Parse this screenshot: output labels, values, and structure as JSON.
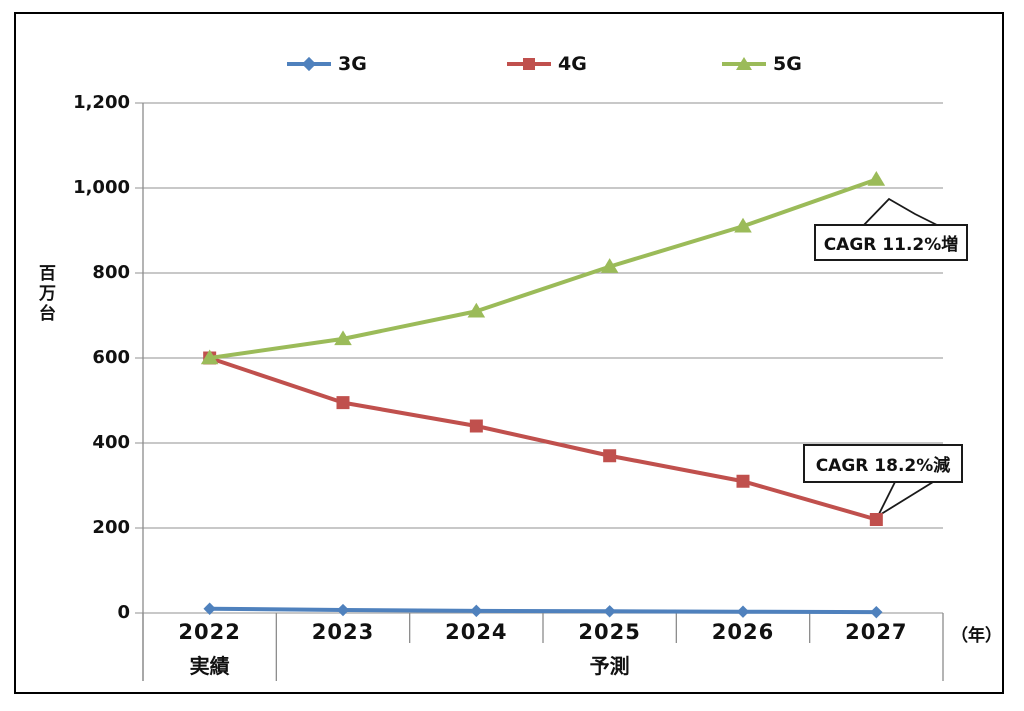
{
  "figure": {
    "unit_label": "百万台",
    "axis_unit_label": "（年）",
    "legend": [
      {
        "label": "3G",
        "color": "#4F81BD",
        "marker": "diamond"
      },
      {
        "label": "4G",
        "color": "#C0504D",
        "marker": "square"
      },
      {
        "label": "5G",
        "color": "#9BBB59",
        "marker": "triangle"
      }
    ]
  },
  "chart_data": {
    "type": "line",
    "categories": [
      "2022",
      "2023",
      "2024",
      "2025",
      "2026",
      "2027"
    ],
    "series": [
      {
        "name": "3G",
        "color": "#4F81BD",
        "marker": "diamond",
        "values": [
          10,
          7,
          5,
          4,
          3,
          2
        ]
      },
      {
        "name": "4G",
        "color": "#C0504D",
        "marker": "square",
        "values": [
          600,
          495,
          440,
          370,
          310,
          220
        ]
      },
      {
        "name": "5G",
        "color": "#9BBB59",
        "marker": "triangle",
        "values": [
          600,
          645,
          710,
          815,
          910,
          1020
        ]
      }
    ],
    "title": "",
    "xlabel": "（年）",
    "ylabel": "百万台",
    "ylim": [
      0,
      1200
    ],
    "ytick_step": 200,
    "yticks": [
      "0",
      "200",
      "400",
      "600",
      "800",
      "1,000",
      "1,200"
    ],
    "grid": true,
    "legend_position": "top",
    "annotations": [
      {
        "text": "CAGR 11.2%増",
        "target_series": "5G",
        "target_category": "2027"
      },
      {
        "text": "CAGR 18.2%減",
        "target_series": "4G",
        "target_category": "2027"
      }
    ],
    "x_group_labels": [
      {
        "text": "実績",
        "categories": [
          "2022"
        ]
      },
      {
        "text": "予測",
        "categories": [
          "2023",
          "2024",
          "2025",
          "2026",
          "2027"
        ]
      }
    ]
  }
}
